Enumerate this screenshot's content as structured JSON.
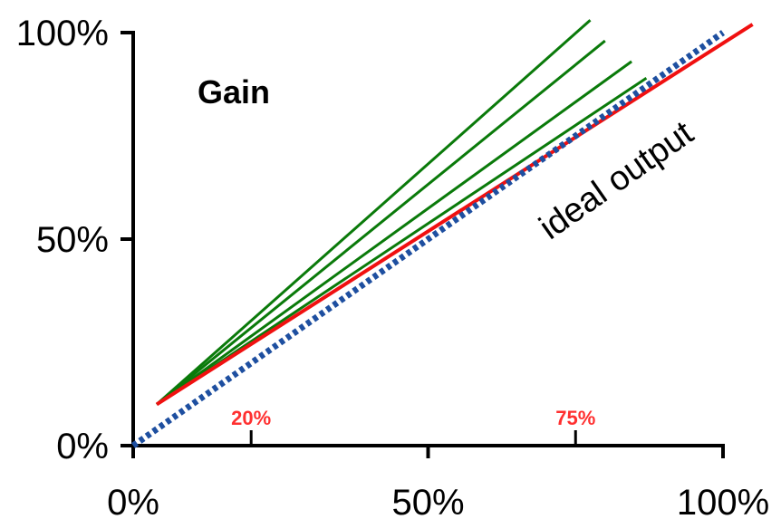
{
  "chart_data": {
    "type": "line",
    "title": "Gain",
    "xlabel": "",
    "ylabel": "",
    "xlim": [
      0,
      100
    ],
    "ylim": [
      0,
      100
    ],
    "grid": false,
    "x_ticks": [
      {
        "value": 0,
        "label": "0%"
      },
      {
        "value": 50,
        "label": "50%"
      },
      {
        "value": 100,
        "label": "100%"
      }
    ],
    "y_ticks": [
      {
        "value": 0,
        "label": "0%"
      },
      {
        "value": 50,
        "label": "50%"
      },
      {
        "value": 100,
        "label": "100%"
      }
    ],
    "minor_x_ticks": [
      {
        "value": 20,
        "label": "20%"
      },
      {
        "value": 75,
        "label": "75%"
      }
    ],
    "series": [
      {
        "style": "solid",
        "color": "#0a7a0a",
        "x": [
          4,
          77.5
        ],
        "y": [
          10,
          103
        ]
      },
      {
        "style": "solid",
        "color": "#0a7a0a",
        "x": [
          4,
          80
        ],
        "y": [
          10,
          98
        ]
      },
      {
        "style": "solid",
        "color": "#0a7a0a",
        "x": [
          4,
          84.5
        ],
        "y": [
          10,
          93
        ]
      },
      {
        "style": "solid",
        "color": "#0a7a0a",
        "x": [
          4,
          87
        ],
        "y": [
          10,
          89
        ]
      },
      {
        "style": "solid",
        "color": "#f01010",
        "x": [
          4,
          105
        ],
        "y": [
          10,
          102
        ]
      },
      {
        "style": "dotted",
        "color": "#1e4fa0",
        "x": [
          0,
          100
        ],
        "y": [
          0,
          100
        ]
      }
    ],
    "annotations": [
      {
        "text": "ideal output",
        "x": 83,
        "y": 62
      }
    ],
    "colors": {
      "axis": "#000000",
      "marker_label": "#ff3030"
    }
  }
}
